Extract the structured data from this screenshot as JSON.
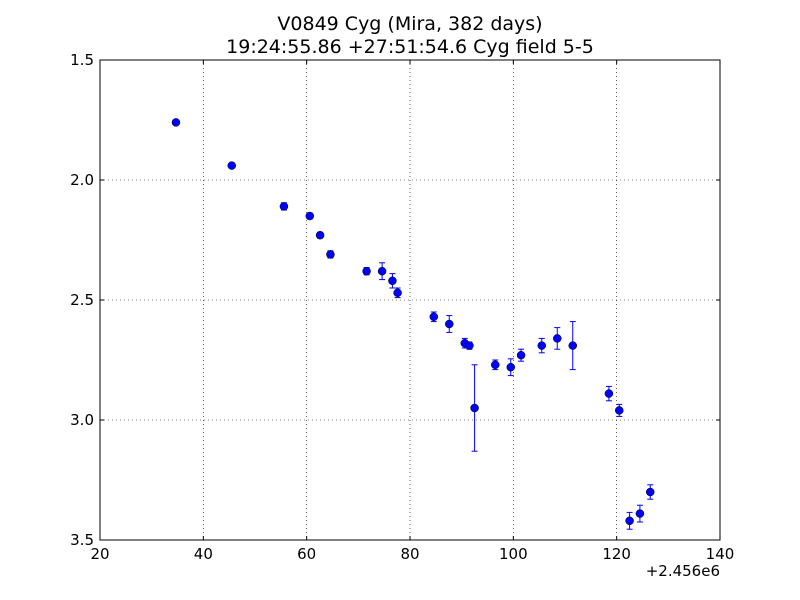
{
  "chart_data": {
    "type": "scatter",
    "title_line1": "V0849 Cyg (Mira, 382 days)",
    "title_line2": "19:24:55.86 +27:51:54.6 Cyg field 5-5",
    "xlabel": "",
    "ylabel": "",
    "x_offset_label": "+2.456e6",
    "xlim": [
      20,
      140
    ],
    "ylim": [
      1.5,
      3.5
    ],
    "y_inverted": true,
    "x_ticks": [
      20,
      40,
      60,
      80,
      100,
      120,
      140
    ],
    "x_tick_labels": [
      "20",
      "40",
      "60",
      "80",
      "100",
      "120",
      "140"
    ],
    "y_ticks": [
      1.5,
      2.0,
      2.5,
      3.0,
      3.5
    ],
    "y_tick_labels": [
      "1.5",
      "2.0",
      "2.5",
      "3.0",
      "3.5"
    ],
    "grid": true,
    "marker_color": "#0000ff",
    "points": [
      {
        "x": 34.7,
        "y": 1.76,
        "err": 0.01
      },
      {
        "x": 45.5,
        "y": 1.94,
        "err": 0.01
      },
      {
        "x": 55.6,
        "y": 2.11,
        "err": 0.015
      },
      {
        "x": 60.6,
        "y": 2.15,
        "err": 0.012
      },
      {
        "x": 62.6,
        "y": 2.23,
        "err": 0.012
      },
      {
        "x": 64.6,
        "y": 2.31,
        "err": 0.015
      },
      {
        "x": 71.6,
        "y": 2.38,
        "err": 0.015
      },
      {
        "x": 74.6,
        "y": 2.38,
        "err": 0.035
      },
      {
        "x": 76.6,
        "y": 2.42,
        "err": 0.03
      },
      {
        "x": 77.6,
        "y": 2.47,
        "err": 0.02
      },
      {
        "x": 84.6,
        "y": 2.57,
        "err": 0.02
      },
      {
        "x": 87.6,
        "y": 2.6,
        "err": 0.035
      },
      {
        "x": 90.6,
        "y": 2.68,
        "err": 0.02
      },
      {
        "x": 91.5,
        "y": 2.69,
        "err": 0.015
      },
      {
        "x": 92.5,
        "y": 2.95,
        "err": 0.18
      },
      {
        "x": 96.5,
        "y": 2.77,
        "err": 0.02
      },
      {
        "x": 99.5,
        "y": 2.78,
        "err": 0.035
      },
      {
        "x": 101.5,
        "y": 2.73,
        "err": 0.025
      },
      {
        "x": 105.5,
        "y": 2.69,
        "err": 0.03
      },
      {
        "x": 108.5,
        "y": 2.66,
        "err": 0.045
      },
      {
        "x": 111.5,
        "y": 2.69,
        "err": 0.1
      },
      {
        "x": 118.5,
        "y": 2.89,
        "err": 0.03
      },
      {
        "x": 120.5,
        "y": 2.96,
        "err": 0.025
      },
      {
        "x": 122.5,
        "y": 3.42,
        "err": 0.035
      },
      {
        "x": 124.5,
        "y": 3.39,
        "err": 0.035
      },
      {
        "x": 126.5,
        "y": 3.3,
        "err": 0.03
      }
    ]
  }
}
